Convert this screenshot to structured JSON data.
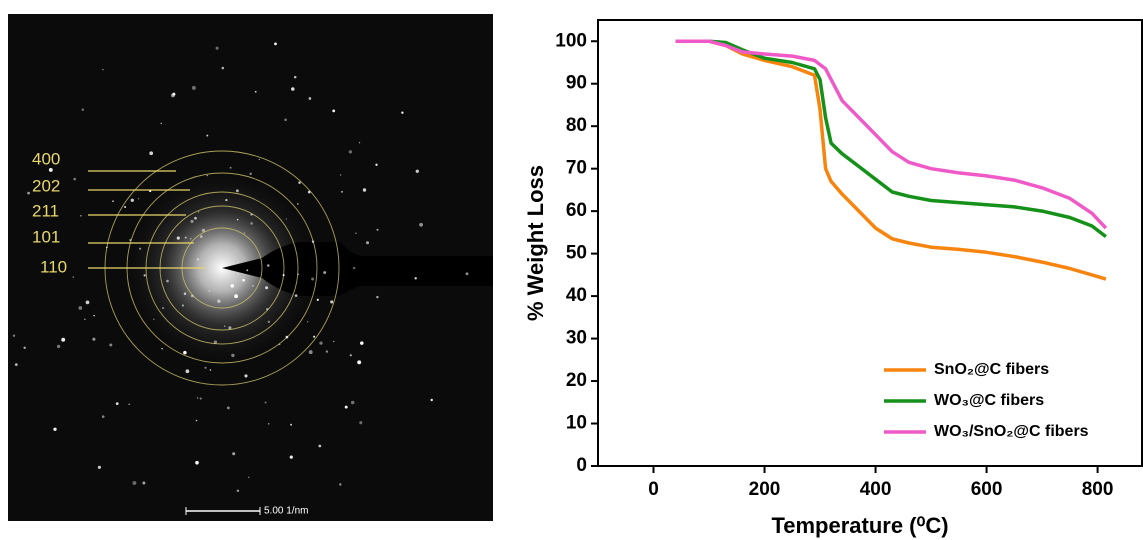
{
  "image": {
    "ring_labels": [
      "400",
      "202",
      "211",
      "101",
      "110"
    ],
    "scale_bar": "5.00 1/nm"
  },
  "chart_data": {
    "type": "line",
    "xlabel": "Temperature (⁰C)",
    "ylabel": "% Weight Loss",
    "x": [
      40,
      100,
      130,
      160,
      200,
      250,
      290,
      300,
      310,
      320,
      340,
      370,
      400,
      430,
      460,
      500,
      550,
      600,
      650,
      700,
      750,
      790,
      815
    ],
    "series": [
      {
        "name": "SnO₂@C fibers",
        "color": "#f7840f",
        "values": [
          100,
          100,
          99,
          97,
          95.5,
          94,
          92,
          84,
          70,
          67,
          64,
          60,
          56,
          53.5,
          52.5,
          51.5,
          51,
          50.3,
          49.3,
          48,
          46.5,
          45,
          44
        ]
      },
      {
        "name": "WO₃@C fibers",
        "color": "#15911a",
        "values": [
          100,
          100,
          99.7,
          98,
          96,
          95,
          93.5,
          91,
          82,
          76,
          73.5,
          70.5,
          67.5,
          64.5,
          63.5,
          62.5,
          62,
          61.5,
          61,
          60,
          58.5,
          56.5,
          54
        ]
      },
      {
        "name": "WO₃/SnO₂@C fibers",
        "color": "#f05ac8",
        "values": [
          100,
          100,
          99,
          97.5,
          97,
          96.5,
          95.5,
          94.5,
          93.5,
          91,
          86,
          82,
          78,
          74,
          71.5,
          70,
          69,
          68.3,
          67.3,
          65.5,
          63,
          59.5,
          56
        ]
      }
    ],
    "xlim": [
      -100,
      880
    ],
    "ylim": [
      0,
      105
    ],
    "xticks": [
      0,
      200,
      400,
      600,
      800
    ],
    "yticks": [
      0,
      10,
      20,
      30,
      40,
      50,
      60,
      70,
      80,
      90,
      100
    ],
    "legend": "lower right"
  }
}
